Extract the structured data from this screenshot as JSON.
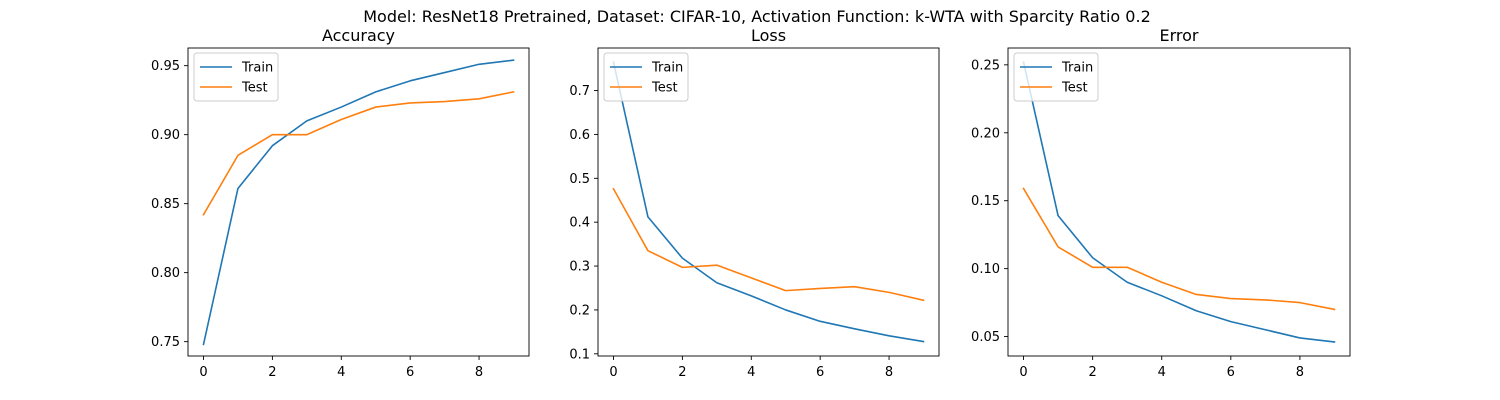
{
  "figure": {
    "suptitle": "Model: ResNet18 Pretrained, Dataset: CIFAR-10, Activation Function: k-WTA with Sparcity Ratio 0.2"
  },
  "colors": {
    "train": "#1f77b4",
    "test": "#ff7f0e",
    "axes": "#000000",
    "legend_border": "#cccccc"
  },
  "chart_data": [
    {
      "type": "line",
      "title": "Accuracy",
      "xlabel": "",
      "ylabel": "",
      "x": [
        0,
        1,
        2,
        3,
        4,
        5,
        6,
        7,
        8,
        9
      ],
      "xlim": [
        -0.45,
        9.45
      ],
      "ylim": [
        0.7396,
        0.9628
      ],
      "xticks": [
        0,
        2,
        4,
        6,
        8
      ],
      "yticks": [
        0.75,
        0.8,
        0.85,
        0.9,
        0.95
      ],
      "ytick_labels": [
        "0.75",
        "0.80",
        "0.85",
        "0.90",
        "0.95"
      ],
      "legend_loc": "upper left",
      "grid": false,
      "series": [
        {
          "name": "Train",
          "color_key": "train",
          "values": [
            0.748,
            0.861,
            0.892,
            0.91,
            0.92,
            0.931,
            0.939,
            0.945,
            0.951,
            0.954
          ]
        },
        {
          "name": "Test",
          "color_key": "test",
          "values": [
            0.842,
            0.885,
            0.9,
            0.9,
            0.911,
            0.92,
            0.923,
            0.924,
            0.926,
            0.931
          ]
        }
      ]
    },
    {
      "type": "line",
      "title": "Loss",
      "xlabel": "",
      "ylabel": "",
      "x": [
        0,
        1,
        2,
        3,
        4,
        5,
        6,
        7,
        8,
        9
      ],
      "xlim": [
        -0.45,
        9.45
      ],
      "ylim": [
        0.095,
        0.797
      ],
      "xticks": [
        0,
        2,
        4,
        6,
        8
      ],
      "yticks": [
        0.1,
        0.2,
        0.3,
        0.4,
        0.5,
        0.6,
        0.7
      ],
      "ytick_labels": [
        "0.1",
        "0.2",
        "0.3",
        "0.4",
        "0.5",
        "0.6",
        "0.7"
      ],
      "legend_loc": "upper left",
      "grid": false,
      "series": [
        {
          "name": "Train",
          "color_key": "train",
          "values": [
            0.765,
            0.412,
            0.318,
            0.262,
            0.232,
            0.2,
            0.174,
            0.157,
            0.141,
            0.128
          ]
        },
        {
          "name": "Test",
          "color_key": "test",
          "values": [
            0.476,
            0.335,
            0.297,
            0.302,
            0.273,
            0.244,
            0.249,
            0.253,
            0.24,
            0.222
          ]
        }
      ]
    },
    {
      "type": "line",
      "title": "Error",
      "xlabel": "",
      "ylabel": "",
      "x": [
        0,
        1,
        2,
        3,
        4,
        5,
        6,
        7,
        8,
        9
      ],
      "xlim": [
        -0.45,
        9.45
      ],
      "ylim": [
        0.0357,
        0.2624
      ],
      "xticks": [
        0,
        2,
        4,
        6,
        8
      ],
      "yticks": [
        0.05,
        0.1,
        0.15,
        0.2,
        0.25
      ],
      "ytick_labels": [
        "0.05",
        "0.10",
        "0.15",
        "0.20",
        "0.25"
      ],
      "legend_loc": "upper left",
      "grid": false,
      "series": [
        {
          "name": "Train",
          "color_key": "train",
          "values": [
            0.252,
            0.139,
            0.108,
            0.09,
            0.08,
            0.069,
            0.061,
            0.055,
            0.049,
            0.046
          ]
        },
        {
          "name": "Test",
          "color_key": "test",
          "values": [
            0.159,
            0.116,
            0.101,
            0.101,
            0.09,
            0.081,
            0.078,
            0.077,
            0.075,
            0.07
          ]
        }
      ]
    }
  ]
}
